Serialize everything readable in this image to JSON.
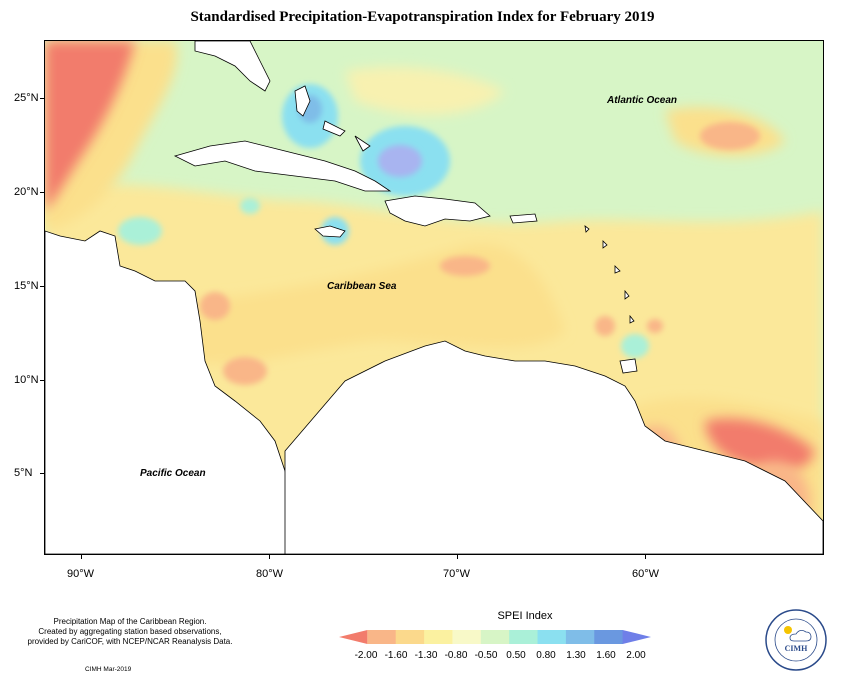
{
  "title": "Standardised Precipitation-Evapotranspiration Index for February 2019",
  "map": {
    "ocean_labels": {
      "atlantic": "Atlantic Ocean",
      "caribbean": "Caribbean Sea",
      "pacific": "Pacific Ocean"
    },
    "lat_labels": [
      "25°N",
      "20°N",
      "15°N",
      "10°N",
      "5°N"
    ],
    "lon_labels": [
      "90°W",
      "80°W",
      "70°W",
      "60°W"
    ]
  },
  "caption": {
    "lines": [
      "Precipitation Map of the Caribbean Region.",
      "Created by aggregating station based observations,",
      "provided by CariCOF, with NCEP/NCAR Reanalysis Data."
    ],
    "credit": "CIMH Mar-2019"
  },
  "legend": {
    "title": "SPEI Index",
    "tick_labels": [
      "-2.00",
      "-1.60",
      "-1.30",
      "-0.80",
      "-0.50",
      "0.50",
      "0.80",
      "1.30",
      "1.60",
      "2.00"
    ],
    "colors": [
      "#f27c6c",
      "#f9b688",
      "#fbd98c",
      "#fbf1a0",
      "#f8f9c8",
      "#d7f5c6",
      "#aaf0d8",
      "#8be0f0",
      "#7fbde8",
      "#6a98e0",
      "#6f7fe8"
    ]
  },
  "logo": {
    "text": "CIMH"
  }
}
